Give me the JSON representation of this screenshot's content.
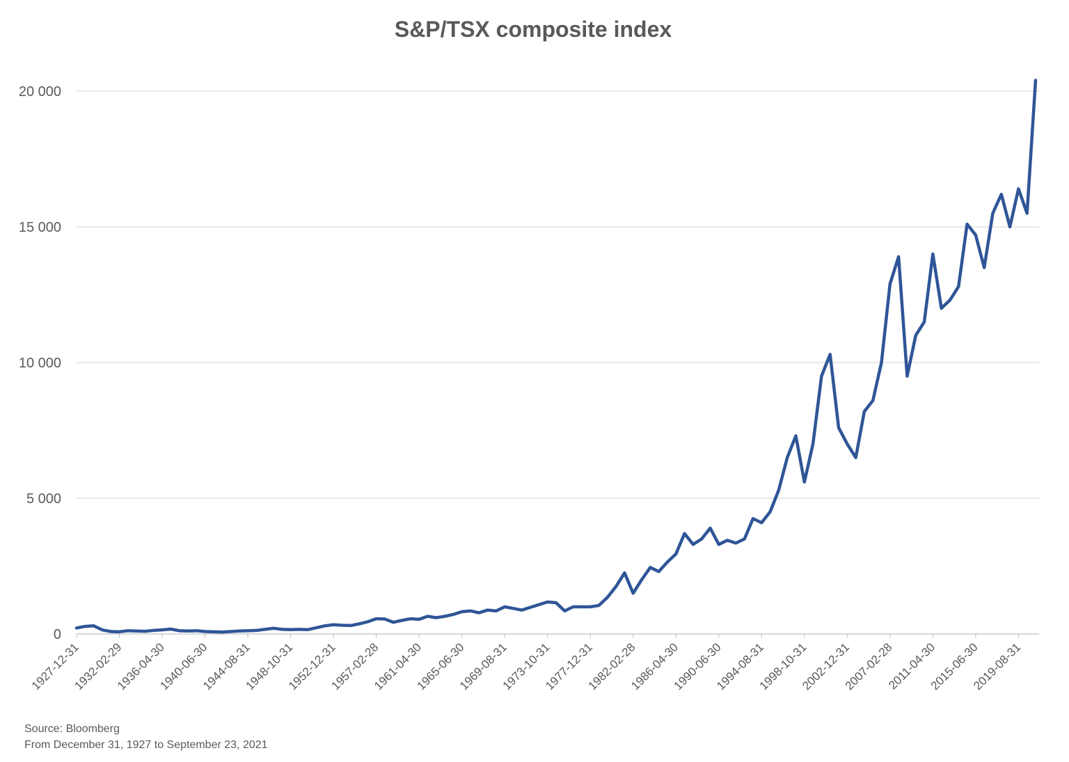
{
  "chart_data": {
    "type": "line",
    "title": "S&P/TSX composite index",
    "notes": [
      "Source: Bloomberg",
      "From December 31, 1927 to September 23, 2021"
    ],
    "categories": [
      "1927-12-31",
      null,
      null,
      null,
      null,
      "1932-02-29",
      null,
      null,
      null,
      null,
      "1936-04-30",
      null,
      null,
      null,
      null,
      "1940-06-30",
      null,
      null,
      null,
      null,
      "1944-08-31",
      null,
      null,
      null,
      null,
      "1948-10-31",
      null,
      null,
      null,
      null,
      "1952-12-31",
      null,
      null,
      null,
      null,
      "1957-02-28",
      null,
      null,
      null,
      null,
      "1961-04-30",
      null,
      null,
      null,
      null,
      "1965-06-30",
      null,
      null,
      null,
      null,
      "1969-08-31",
      null,
      null,
      null,
      null,
      "1973-10-31",
      null,
      null,
      null,
      null,
      "1977-12-31",
      null,
      null,
      null,
      null,
      "1982-02-28",
      null,
      null,
      null,
      null,
      "1986-04-30",
      null,
      null,
      null,
      null,
      "1990-06-30",
      null,
      null,
      null,
      null,
      "1994-08-31",
      null,
      null,
      null,
      null,
      "1998-10-31",
      null,
      null,
      null,
      null,
      "2002-12-31",
      null,
      null,
      null,
      null,
      "2007-02-28",
      null,
      null,
      null,
      null,
      "2011-04-30",
      null,
      null,
      null,
      null,
      "2015-06-30",
      null,
      null,
      null,
      null,
      "2019-08-31",
      null,
      null
    ],
    "values": [
      220,
      280,
      300,
      150,
      90,
      80,
      120,
      110,
      100,
      130,
      150,
      180,
      120,
      110,
      120,
      90,
      80,
      70,
      90,
      110,
      120,
      130,
      170,
      210,
      170,
      160,
      170,
      160,
      230,
      300,
      340,
      320,
      310,
      370,
      450,
      560,
      550,
      430,
      500,
      560,
      540,
      650,
      600,
      650,
      720,
      820,
      850,
      780,
      880,
      850,
      1000,
      940,
      880,
      980,
      1080,
      1180,
      1150,
      850,
      1000,
      1000,
      1000,
      1050,
      1350,
      1750,
      2250,
      1500,
      2000,
      2450,
      2300,
      2650,
      2950,
      3700,
      3300,
      3500,
      3900,
      3300,
      3450,
      3350,
      3500,
      4250,
      4100,
      4500,
      5300,
      6500,
      7300,
      5600,
      7000,
      9500,
      10300,
      7600,
      7000,
      6500,
      8200,
      8600,
      10000,
      12900,
      13900,
      9500,
      11000,
      11500,
      14000,
      12000,
      12300,
      12800,
      15100,
      14700,
      13500,
      15500,
      16200,
      15000,
      16400,
      15500,
      20400
    ],
    "color": "#2f5597",
    "ylim": [
      0,
      21000
    ],
    "yticks": [
      0,
      {
        "value": 5000,
        "label": "5 000"
      },
      {
        "value": 10000,
        "label": "10 000"
      },
      {
        "value": 15000,
        "label": "15 000"
      },
      {
        "value": 20000,
        "label": "20 000"
      }
    ],
    "grid": true
  }
}
